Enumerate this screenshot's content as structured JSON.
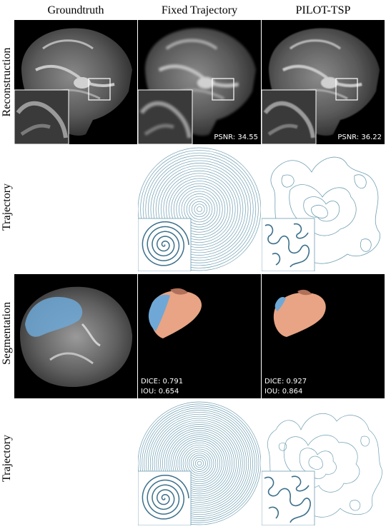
{
  "columns": [
    "Groundtruth",
    "Fixed Trajectory",
    "PILOT-TSP"
  ],
  "rows": [
    "Reconstruction",
    "Trajectory",
    "Segmentation",
    "Trajectory"
  ],
  "reconstruction": {
    "fixed_psnr": "PSNR: 34.55",
    "pilot_psnr": "PSNR: 36.22"
  },
  "segmentation": {
    "fixed_dice": "DICE: 0.791",
    "fixed_iou": "IOU:  0.654",
    "pilot_dice": "DICE: 0.927",
    "pilot_iou": "IOU:  0.864"
  },
  "colors": {
    "trajectory": "#6f9fb3",
    "tumor_blue": "#6fa8d6",
    "tumor_orange": "#e8a484",
    "tumor_brown": "#b0705a"
  }
}
